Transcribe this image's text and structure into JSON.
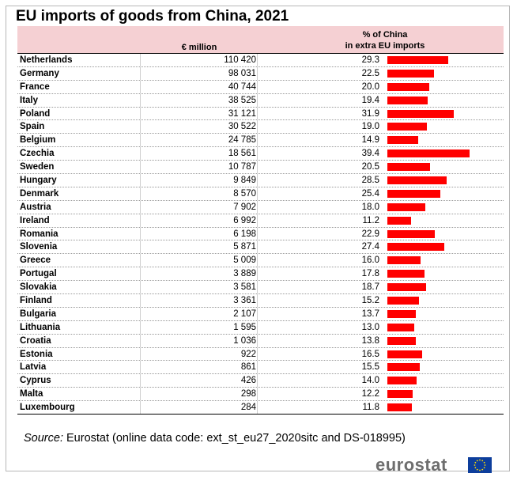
{
  "title": "EU imports of goods from China, 2021",
  "headers": {
    "million": "€ million",
    "pct_line1": "% of China",
    "pct_line2": "in extra EU imports"
  },
  "chart_data": {
    "type": "table",
    "title": "EU imports of goods from China, 2021",
    "columns": [
      "€ million",
      "% of China in extra EU imports"
    ],
    "rows": [
      {
        "country": "Netherlands",
        "million": "110 420",
        "pct": 29.3
      },
      {
        "country": "Germany",
        "million": "98 031",
        "pct": 22.5
      },
      {
        "country": "France",
        "million": "40 744",
        "pct": 20.0
      },
      {
        "country": "Italy",
        "million": "38 525",
        "pct": 19.4
      },
      {
        "country": "Poland",
        "million": "31 121",
        "pct": 31.9
      },
      {
        "country": "Spain",
        "million": "30 522",
        "pct": 19.0
      },
      {
        "country": "Belgium",
        "million": "24 785",
        "pct": 14.9
      },
      {
        "country": "Czechia",
        "million": "18 561",
        "pct": 39.4
      },
      {
        "country": "Sweden",
        "million": "10 787",
        "pct": 20.5
      },
      {
        "country": "Hungary",
        "million": "9 849",
        "pct": 28.5
      },
      {
        "country": "Denmark",
        "million": "8 570",
        "pct": 25.4
      },
      {
        "country": "Austria",
        "million": "7 902",
        "pct": 18.0
      },
      {
        "country": "Ireland",
        "million": "6 992",
        "pct": 11.2
      },
      {
        "country": "Romania",
        "million": "6 198",
        "pct": 22.9
      },
      {
        "country": "Slovenia",
        "million": "5 871",
        "pct": 27.4
      },
      {
        "country": "Greece",
        "million": "5 009",
        "pct": 16.0
      },
      {
        "country": "Portugal",
        "million": "3 889",
        "pct": 17.8
      },
      {
        "country": "Slovakia",
        "million": "3 581",
        "pct": 18.7
      },
      {
        "country": "Finland",
        "million": "3 361",
        "pct": 15.2
      },
      {
        "country": "Bulgaria",
        "million": "2 107",
        "pct": 13.7
      },
      {
        "country": "Lithuania",
        "million": "1 595",
        "pct": 13.0
      },
      {
        "country": "Croatia",
        "million": "1 036",
        "pct": 13.8
      },
      {
        "country": "Estonia",
        "million": "922",
        "pct": 16.5
      },
      {
        "country": "Latvia",
        "million": "861",
        "pct": 15.5
      },
      {
        "country": "Cyprus",
        "million": "426",
        "pct": 14.0
      },
      {
        "country": "Malta",
        "million": "298",
        "pct": 12.2
      },
      {
        "country": "Luxembourg",
        "million": "284",
        "pct": 11.8
      }
    ],
    "bar_color": "#ff0000",
    "bar_max_pct": 39.4
  },
  "source": {
    "label": "Source:",
    "text": "Eurostat (online data code: ext_st_eu27_2020sitc and DS-018995)"
  },
  "logo": {
    "text": "eurostat",
    "flag_color": "#0d3e9c",
    "star_color": "#ffdd00"
  }
}
